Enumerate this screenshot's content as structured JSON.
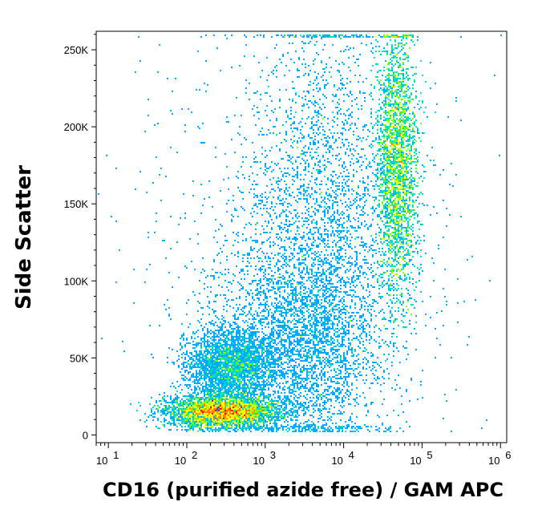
{
  "chart_data": {
    "type": "scatter",
    "subtype": "flow-cytometry-density-dot-plot",
    "title": "",
    "xlabel": "CD16 (purified azide free) / GAM APC",
    "ylabel": "Side Scatter",
    "x_scale": "log",
    "xlim": [
      7,
      1200000
    ],
    "ylim": [
      -5000,
      262000
    ],
    "x_ticks": [
      10,
      100,
      1000,
      10000,
      100000,
      1000000
    ],
    "x_tick_labels": [
      {
        "base": "10",
        "exp": "1"
      },
      {
        "base": "10",
        "exp": "2"
      },
      {
        "base": "10",
        "exp": "3"
      },
      {
        "base": "10",
        "exp": "4"
      },
      {
        "base": "10",
        "exp": "5"
      },
      {
        "base": "10",
        "exp": "6"
      }
    ],
    "y_ticks": [
      0,
      50000,
      100000,
      150000,
      200000,
      250000
    ],
    "y_tick_labels": [
      "0",
      "50K",
      "100K",
      "150K",
      "200K",
      "250K"
    ],
    "grid": false,
    "colormap": [
      "#0000ff",
      "#00aaff",
      "#00e0c0",
      "#80ff00",
      "#ffff00",
      "#ff8000",
      "#ff0000"
    ],
    "populations": [
      {
        "x_log_center": 2.45,
        "y_center": 15000,
        "x_log_sd": 0.35,
        "y_sd": 5000,
        "weight": 0.3,
        "density": "high"
      },
      {
        "x_log_center": 2.55,
        "y_center": 45000,
        "x_log_sd": 0.28,
        "y_sd": 12000,
        "weight": 0.12,
        "density": "medium"
      },
      {
        "x_log_center": 4.68,
        "y_center": 175000,
        "x_log_sd": 0.13,
        "y_sd": 42000,
        "weight": 0.28,
        "density": "medium-high"
      },
      {
        "x_log_center": 3.7,
        "y_center": 130000,
        "x_log_sd": 0.45,
        "y_sd": 70000,
        "weight": 0.15,
        "density": "low"
      },
      {
        "x_log_center": 3.4,
        "y_center": 60000,
        "x_log_sd": 0.5,
        "y_sd": 30000,
        "weight": 0.1,
        "density": "low"
      },
      {
        "x_log_center": 3.5,
        "y_center": 120000,
        "x_log_sd": 1.0,
        "y_sd": 70000,
        "weight": 0.05,
        "density": "sparse"
      }
    ]
  }
}
